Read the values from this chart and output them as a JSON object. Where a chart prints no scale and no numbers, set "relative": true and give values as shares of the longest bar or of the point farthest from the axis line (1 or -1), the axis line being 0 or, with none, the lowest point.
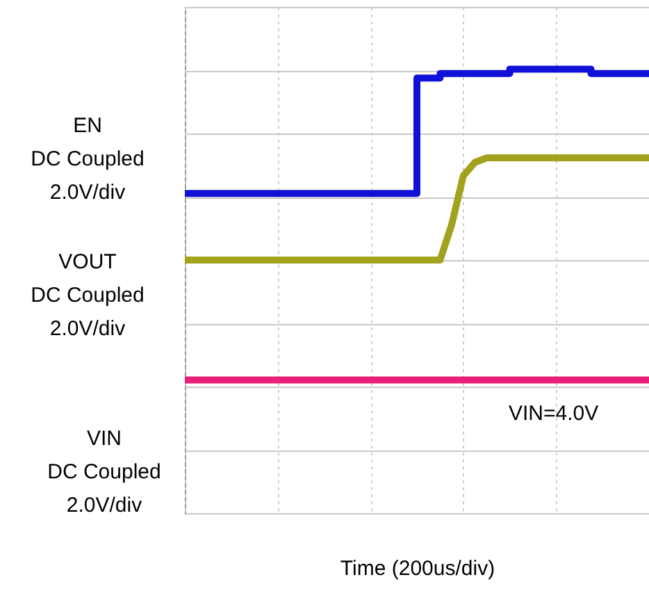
{
  "chart_data": {
    "type": "line",
    "relative": true,
    "xlabel": "Time (200us/div)",
    "grid": true,
    "categories": [
      null,
      null,
      null,
      null,
      null,
      null,
      null,
      null,
      null,
      null,
      null,
      null,
      null,
      null,
      null,
      null,
      null,
      null,
      null,
      null,
      null,
      null,
      null,
      null,
      null,
      null,
      null,
      null,
      null,
      null,
      null,
      null,
      null,
      null,
      null,
      null,
      null,
      null,
      null,
      null,
      null
    ],
    "series": [
      {
        "name": "EN\nDC Coupled\n2.0V/div",
        "type": "step",
        "color": "#1010d8",
        "values": [
          0.72,
          0.72,
          0.72,
          0.72,
          0.72,
          0.72,
          0.72,
          0.72,
          0.72,
          0.72,
          0.72,
          0.72,
          0.72,
          0.72,
          0.72,
          0.72,
          0.72,
          0.72,
          0.72,
          0.72,
          0.98,
          0.98,
          0.99,
          0.99,
          0.99,
          0.99,
          0.99,
          0.99,
          1,
          1,
          1,
          1,
          1,
          1,
          1,
          0.99,
          0.99,
          0.99,
          0.99,
          0.99,
          0.99
        ]
      },
      {
        "name": "VOUT\nDC Coupled\n2.0V/div",
        "color": "#a2a21e",
        "values": [
          0.57,
          0.57,
          0.57,
          0.57,
          0.57,
          0.57,
          0.57,
          0.57,
          0.57,
          0.57,
          0.57,
          0.57,
          0.57,
          0.57,
          0.57,
          0.57,
          0.57,
          0.57,
          0.57,
          0.57,
          0.57,
          0.57,
          0.57,
          0.65,
          0.76,
          0.79,
          0.8,
          0.8,
          0.8,
          0.8,
          0.8,
          0.8,
          0.8,
          0.8,
          0.8,
          0.8,
          0.8,
          0.8,
          0.8,
          0.8,
          0.8
        ]
      },
      {
        "name": "VIN\nDC Coupled\n2.0V/div",
        "color": "#e8207a",
        "values": [
          0.3,
          0.3,
          0.3,
          0.3,
          0.3,
          0.3,
          0.3,
          0.3,
          0.3,
          0.3,
          0.3,
          0.3,
          0.3,
          0.3,
          0.3,
          0.3,
          0.3,
          0.3,
          0.3,
          0.3,
          0.3,
          0.3,
          0.3,
          0.3,
          0.3,
          0.3,
          0.3,
          0.3,
          0.3,
          0.3,
          0.3,
          0.3,
          0.3,
          0.3,
          0.3,
          0.3,
          0.3,
          0.3,
          0.3,
          0.3,
          0.3
        ]
      }
    ],
    "annotations": [
      "VIN=4.0V"
    ]
  }
}
